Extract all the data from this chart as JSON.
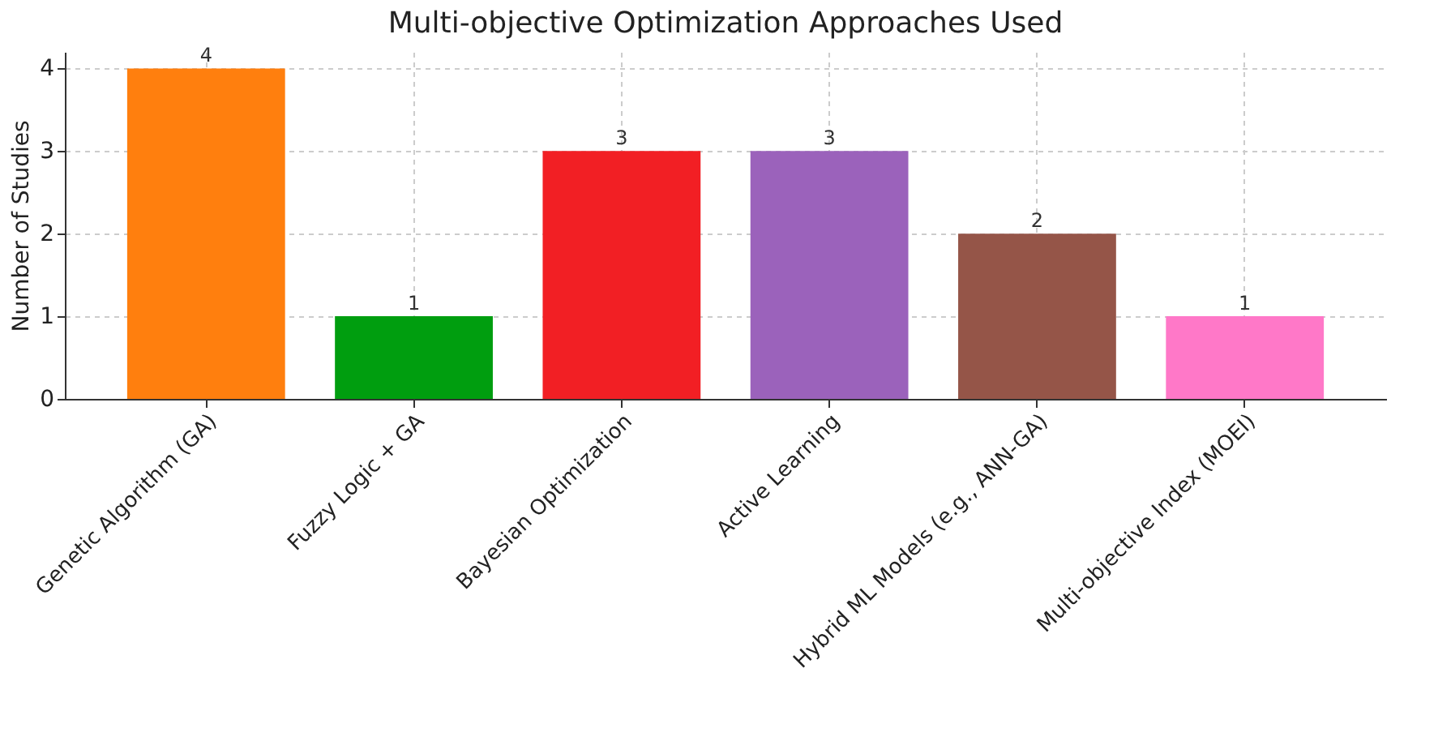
{
  "chart_data": {
    "type": "bar",
    "title": "Multi-objective Optimization Approaches Used",
    "ylabel": "Number of Studies",
    "categories": [
      "Genetic Algorithm (GA)",
      "Fuzzy Logic + GA",
      "Bayesian Optimization",
      "Active Learning",
      "Hybrid ML Models (e.g., ANN-GA)",
      "Multi-objective Index (MOEI)"
    ],
    "values": [
      4,
      1,
      3,
      3,
      2,
      1
    ],
    "colors": [
      "#ff7f0e",
      "#009e0f",
      "#f21f24",
      "#9b62bb",
      "#955548",
      "#ff78c8"
    ],
    "ylim": [
      0,
      4.2
    ],
    "yticks": [
      0,
      1,
      2,
      3,
      4
    ],
    "grid": true,
    "data_labels": true
  }
}
